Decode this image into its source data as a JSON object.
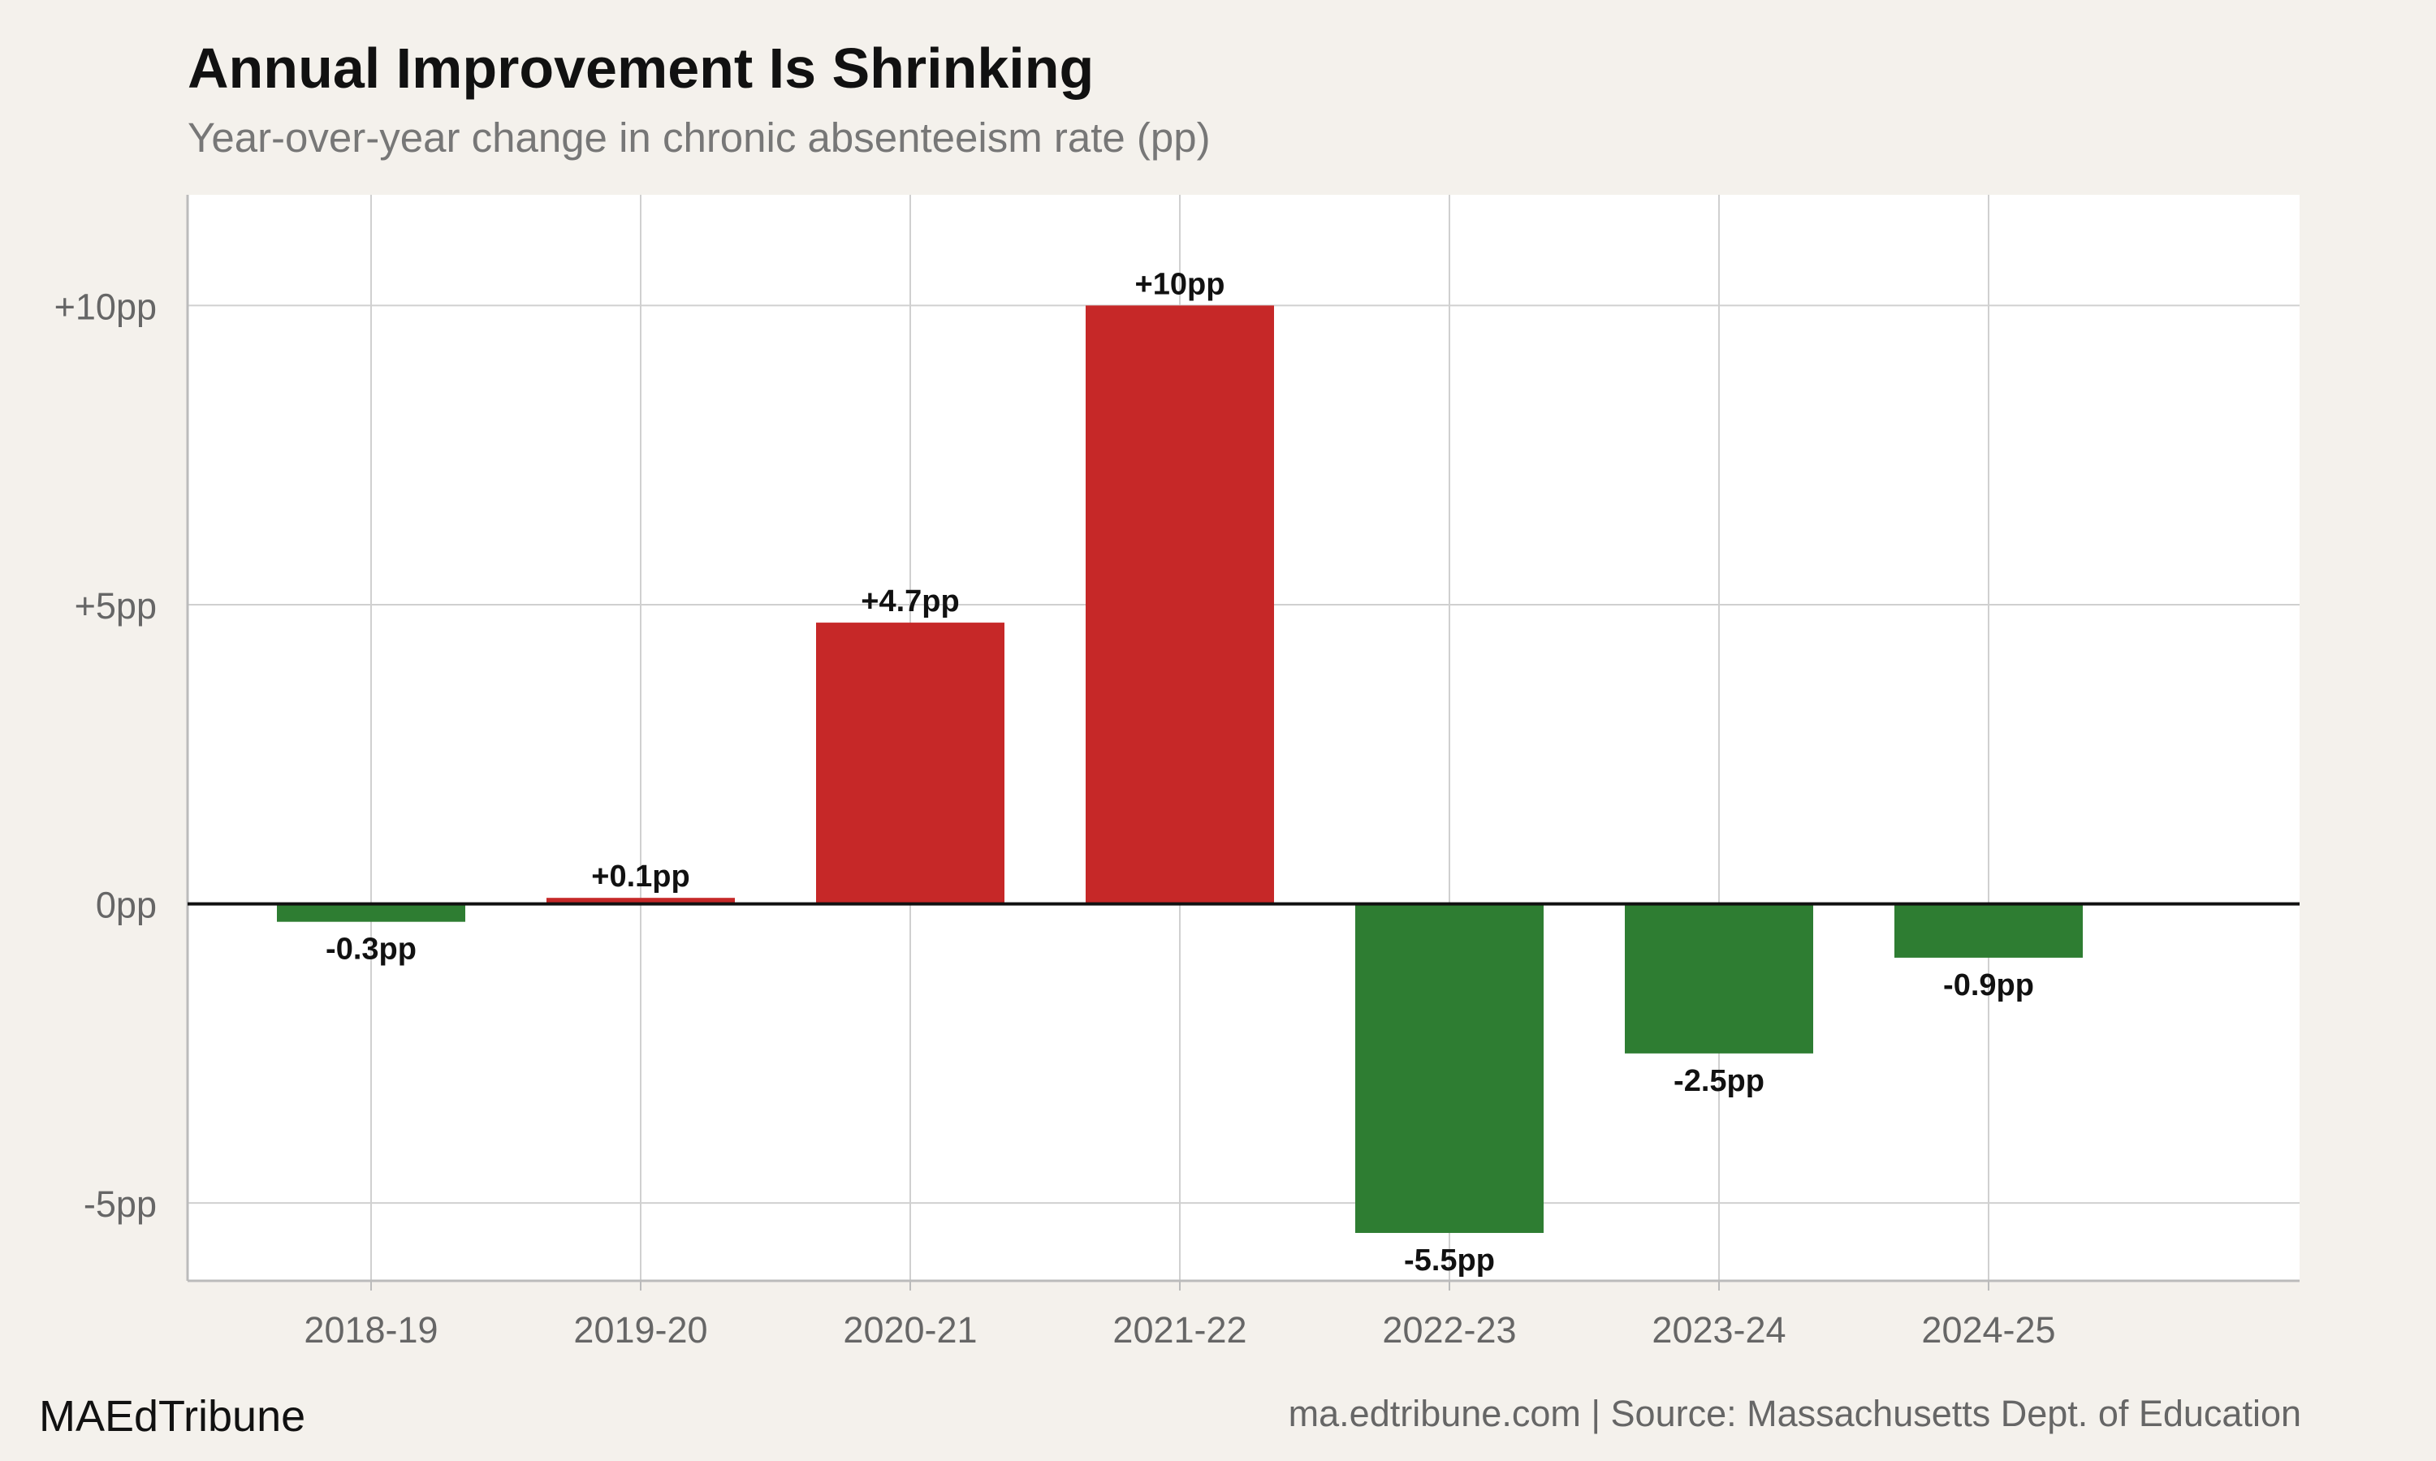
{
  "title": "Annual Improvement Is Shrinking",
  "subtitle": "Year-over-year change in chronic absenteeism rate (pp)",
  "footer": {
    "brand": "MAEdTribune",
    "source": "ma.edtribune.com | Source: Massachusetts Dept. of Education"
  },
  "chart_data": {
    "type": "bar",
    "categories": [
      "2018-19",
      "2019-20",
      "2020-21",
      "2021-22",
      "2022-23",
      "2023-24",
      "2024-25"
    ],
    "values": [
      -0.3,
      0.1,
      4.7,
      10,
      -5.5,
      -2.5,
      -0.9
    ],
    "data_labels": [
      "-0.3pp",
      "+0.1pp",
      "+4.7pp",
      "+10pp",
      "-5.5pp",
      "-2.5pp",
      "-0.9pp"
    ],
    "y_ticks": [
      -5,
      0,
      5,
      10
    ],
    "y_tick_labels": [
      "-5pp",
      "0pp",
      "+5pp",
      "+10pp"
    ],
    "ylim": [
      -6.3,
      11.85
    ],
    "grid": true,
    "colors": {
      "increase": "#c62828",
      "decrease": "#2e7d32",
      "zero_line": "#111111",
      "grid": "#d0d0d0",
      "plot_bg": "#ffffff"
    }
  }
}
